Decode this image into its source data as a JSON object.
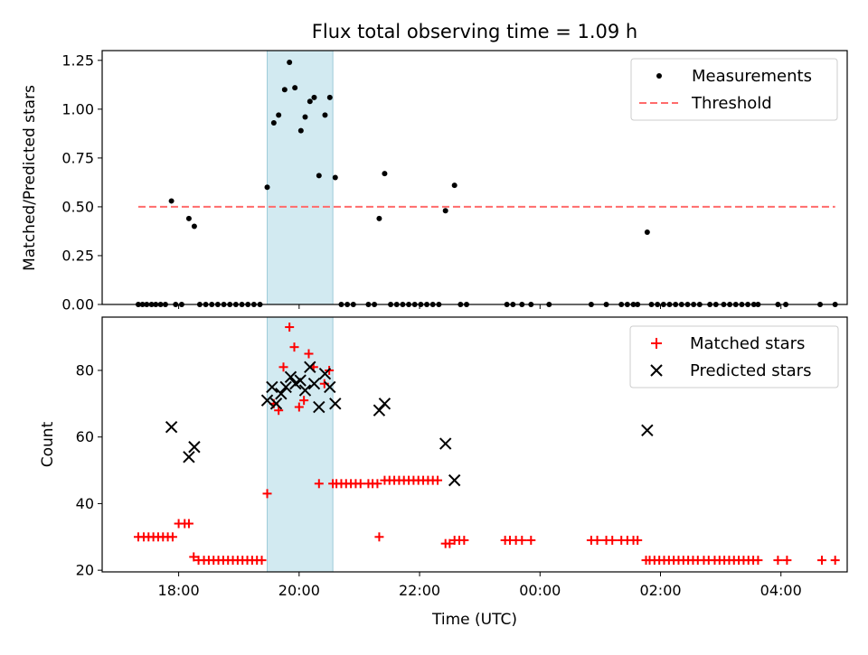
{
  "chart_data": [
    {
      "type": "scatter",
      "title": "Flux total observing time = 1.09 h",
      "xlabel": "",
      "ylabel": "Matched/Predicted stars",
      "xlim_hours": [
        16.73,
        29.1
      ],
      "ylim": [
        0,
        1.3
      ],
      "yticks": [
        "0.00",
        "0.25",
        "0.50",
        "0.75",
        "1.00",
        "1.25"
      ],
      "ytick_values": [
        0,
        0.25,
        0.5,
        0.75,
        1.0,
        1.25
      ],
      "legend_position": "top-right",
      "shaded_interval_hours": [
        19.47,
        20.56
      ],
      "shade_color": "#add8e6",
      "series": [
        {
          "name": "Measurements",
          "color": "#000000",
          "x_hours": [
            17.88,
            18.17,
            18.26,
            19.47,
            19.58,
            19.66,
            19.76,
            19.84,
            19.93,
            20.03,
            20.1,
            20.18,
            20.25,
            20.33,
            20.43,
            20.51,
            20.6,
            21.33,
            21.42,
            22.43,
            22.58,
            25.78,
            17.33,
            17.4,
            17.47,
            17.55,
            17.62,
            17.7,
            17.78,
            17.95,
            18.05,
            18.35,
            18.45,
            18.55,
            18.65,
            18.75,
            18.85,
            18.95,
            19.05,
            19.15,
            19.25,
            19.35,
            20.7,
            20.8,
            20.9,
            21.15,
            21.25,
            21.52,
            21.62,
            21.72,
            21.82,
            21.92,
            22.02,
            22.12,
            22.22,
            22.32,
            22.68,
            22.78,
            23.45,
            23.55,
            23.7,
            23.85,
            24.15,
            24.85,
            25.1,
            25.35,
            25.45,
            25.55,
            25.62,
            25.85,
            25.95,
            26.05,
            26.15,
            26.25,
            26.35,
            26.45,
            26.55,
            26.65,
            26.82,
            26.92,
            27.05,
            27.15,
            27.25,
            27.35,
            27.45,
            27.55,
            27.62,
            27.95,
            28.08,
            28.65,
            28.9
          ],
          "y": [
            0.53,
            0.44,
            0.4,
            0.6,
            0.93,
            0.97,
            1.1,
            1.24,
            1.11,
            0.89,
            0.96,
            1.04,
            1.06,
            0.66,
            0.97,
            1.06,
            0.65,
            0.44,
            0.67,
            0.48,
            0.61,
            0.37,
            0,
            0,
            0,
            0,
            0,
            0,
            0,
            0,
            0,
            0,
            0,
            0,
            0,
            0,
            0,
            0,
            0,
            0,
            0,
            0,
            0,
            0,
            0,
            0,
            0,
            0,
            0,
            0,
            0,
            0,
            0,
            0,
            0,
            0,
            0,
            0,
            0,
            0,
            0,
            0,
            0,
            0,
            0,
            0,
            0,
            0,
            0,
            0,
            0,
            0,
            0,
            0,
            0,
            0,
            0,
            0,
            0,
            0,
            0,
            0,
            0,
            0,
            0,
            0,
            0,
            0,
            0,
            0,
            0
          ]
        },
        {
          "name": "Threshold",
          "color": "#ff6b6b",
          "x_hours": [
            17.33,
            28.9
          ],
          "y": [
            0.5,
            0.5
          ]
        }
      ]
    },
    {
      "type": "scatter",
      "title": "",
      "xlabel": "Time (UTC)",
      "ylabel": "Count",
      "xlim_hours": [
        16.73,
        29.1
      ],
      "ylim": [
        19.5,
        96
      ],
      "yticks": [
        "20",
        "40",
        "60",
        "80"
      ],
      "ytick_values": [
        20,
        40,
        60,
        80
      ],
      "xticks": [
        "18:00",
        "20:00",
        "22:00",
        "00:00",
        "02:00",
        "04:00"
      ],
      "xtick_hours": [
        18,
        20,
        22,
        24,
        26,
        28
      ],
      "legend_position": "top-right",
      "shaded_interval_hours": [
        19.47,
        20.56
      ],
      "shade_color": "#add8e6",
      "series": [
        {
          "name": "Matched stars",
          "color": "#ff0000",
          "marker": "plus",
          "x_hours": [
            17.33,
            17.42,
            17.5,
            17.58,
            17.66,
            17.74,
            17.82,
            17.9,
            18.0,
            18.1,
            18.17,
            18.25,
            18.33,
            18.42,
            18.5,
            18.58,
            18.66,
            18.74,
            18.82,
            18.9,
            18.98,
            19.06,
            19.14,
            19.22,
            19.3,
            19.38,
            19.47,
            19.58,
            19.66,
            19.74,
            19.84,
            19.92,
            20.0,
            20.08,
            20.16,
            20.24,
            20.33,
            20.42,
            20.5,
            20.56,
            20.62,
            20.7,
            20.78,
            20.86,
            20.94,
            21.02,
            21.15,
            21.22,
            21.3,
            21.33,
            21.42,
            21.5,
            21.58,
            21.66,
            21.74,
            21.82,
            21.9,
            21.98,
            22.06,
            22.14,
            22.22,
            22.3,
            22.43,
            22.5,
            22.58,
            22.66,
            22.74,
            23.42,
            23.5,
            23.6,
            23.7,
            23.85,
            24.85,
            24.95,
            25.1,
            25.2,
            25.35,
            25.45,
            25.55,
            25.62,
            25.76,
            25.82,
            25.9,
            25.98,
            26.06,
            26.14,
            26.22,
            26.3,
            26.38,
            26.46,
            26.54,
            26.62,
            26.72,
            26.8,
            26.9,
            26.98,
            27.06,
            27.14,
            27.22,
            27.3,
            27.38,
            27.46,
            27.54,
            27.62,
            27.95,
            28.1,
            28.68,
            28.9
          ],
          "y": [
            30,
            30,
            30,
            30,
            30,
            30,
            30,
            30,
            34,
            34,
            34,
            24,
            23,
            23,
            23,
            23,
            23,
            23,
            23,
            23,
            23,
            23,
            23,
            23,
            23,
            23,
            43,
            70,
            68,
            81,
            93,
            87,
            69,
            71,
            85,
            81,
            46,
            76,
            80,
            46,
            46,
            46,
            46,
            46,
            46,
            46,
            46,
            46,
            46,
            30,
            47,
            47,
            47,
            47,
            47,
            47,
            47,
            47,
            47,
            47,
            47,
            47,
            28,
            28,
            29,
            29,
            29,
            29,
            29,
            29,
            29,
            29,
            29,
            29,
            29,
            29,
            29,
            29,
            29,
            29,
            23,
            23,
            23,
            23,
            23,
            23,
            23,
            23,
            23,
            23,
            23,
            23,
            23,
            23,
            23,
            23,
            23,
            23,
            23,
            23,
            23,
            23,
            23,
            23,
            23,
            23,
            23,
            23
          ]
        },
        {
          "name": "Predicted stars",
          "color": "#000000",
          "marker": "x",
          "x_hours": [
            17.88,
            18.17,
            18.26,
            19.47,
            19.55,
            19.62,
            19.7,
            19.78,
            19.86,
            19.94,
            20.02,
            20.1,
            20.18,
            20.25,
            20.33,
            20.43,
            20.51,
            20.6,
            21.33,
            21.42,
            22.43,
            22.58,
            25.78
          ],
          "y": [
            63,
            54,
            57,
            71,
            75,
            70,
            73,
            75,
            78,
            76,
            77,
            74,
            81,
            76,
            69,
            79,
            75,
            70,
            68,
            70,
            58,
            47,
            62
          ]
        }
      ]
    }
  ]
}
